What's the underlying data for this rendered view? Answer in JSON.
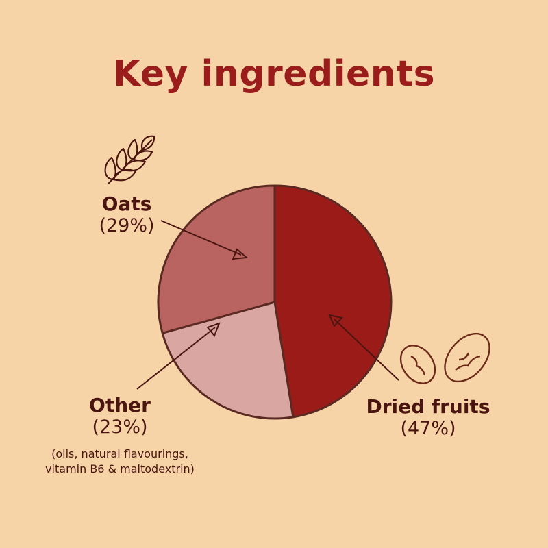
{
  "chart_data": {
    "type": "pie",
    "title": "Key ingredients",
    "slices": [
      {
        "label": "Dried fruits",
        "percent_label": "(47%)",
        "value": 47,
        "color": "#9B1B19"
      },
      {
        "label": "Other",
        "percent_label": "(23%)",
        "value": 23,
        "color": "#D9A6A2",
        "note": "(oils, natural flavourings, vitamin B6 & maltodextrin)"
      },
      {
        "label": "Oats",
        "percent_label": "(29%)",
        "value": 29,
        "color": "#B96461"
      }
    ],
    "outline_color": "#5A2A22",
    "icons": {
      "oats": "wheat-icon",
      "dried_fruits": "nuts-icon"
    }
  }
}
